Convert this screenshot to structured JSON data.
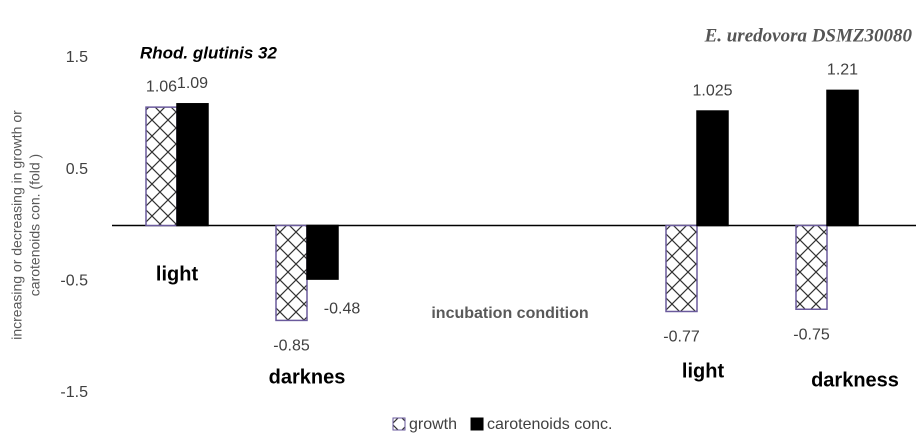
{
  "chart_data": {
    "type": "bar",
    "annotations": [
      "Rhod. glutinis 32",
      "E. uredovora DSMZ30080"
    ],
    "x_label": "incubation condition",
    "y_label": [
      "increasing or decreasing in growth or",
      "carotenoids con. (fold )"
    ],
    "categories": [
      "light",
      "darknes",
      null,
      null,
      "light",
      "darkness"
    ],
    "series": [
      {
        "name": "growth",
        "color": "#6a5a9c",
        "pattern": "hatch",
        "values": [
          1.06,
          -0.85,
          null,
          null,
          -0.77,
          -0.75
        ]
      },
      {
        "name": "carotenoids conc.",
        "color": "#000000",
        "values": [
          1.09,
          -0.48,
          null,
          null,
          1.025,
          1.21
        ]
      }
    ],
    "ylim": [
      -1.5,
      1.5
    ],
    "yticks": [
      -1.5,
      -0.5,
      0.5,
      1.5
    ],
    "grid": false,
    "legend": "bottom"
  }
}
